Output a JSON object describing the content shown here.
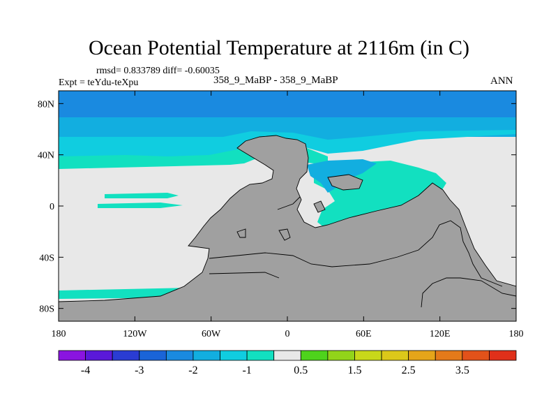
{
  "chart_data": {
    "type": "heatmap",
    "title": "Ocean Potential Temperature at 2116m (in C)",
    "stats_line": "rmsd= 0.833789 diff= -0.60035",
    "left_label": "Expt = teYdu-teXpu",
    "center_label": "358_9_MaBP - 358_9_MaBP",
    "right_label": "ANN",
    "x_ticks": [
      "180",
      "120W",
      "60W",
      "0",
      "60E",
      "120E",
      "180"
    ],
    "x_tick_values": [
      -180,
      -120,
      -60,
      0,
      60,
      120,
      180
    ],
    "y_ticks": [
      "80N",
      "40N",
      "0",
      "40S",
      "80S"
    ],
    "y_tick_values": [
      80,
      40,
      0,
      -40,
      -80
    ],
    "xlim": [
      -180,
      180
    ],
    "ylim": [
      -90,
      90
    ],
    "colorbar": {
      "colors": [
        "#8a14e0",
        "#5a19d9",
        "#2a3cd3",
        "#1a64d8",
        "#1a8ae0",
        "#12aee0",
        "#10cde0",
        "#12e0c0",
        "#e8e8e8",
        "#4ed31c",
        "#92d41a",
        "#c8d81a",
        "#dcc81a",
        "#e5a51a",
        "#e47a1a",
        "#e2521a",
        "#e0301a"
      ],
      "tick_labels": [
        "-4",
        "-3",
        "-2",
        "-1",
        "0.5",
        "1.5",
        "2.5",
        "3.5"
      ],
      "tick_boundary_index": [
        1,
        3,
        5,
        7,
        9,
        11,
        13,
        15
      ]
    }
  }
}
